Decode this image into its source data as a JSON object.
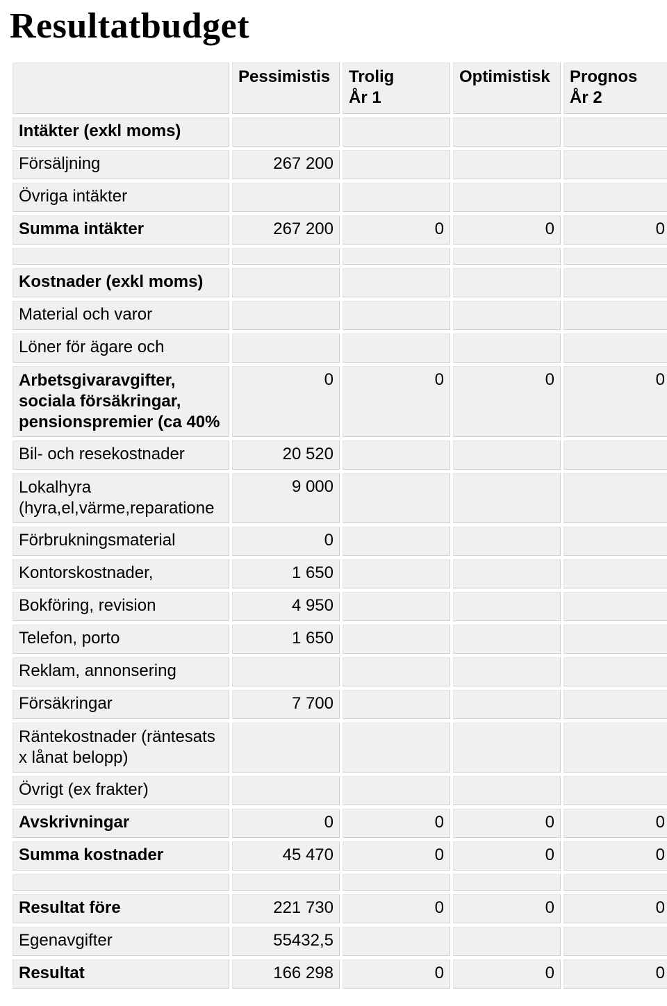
{
  "title": "Resultatbudget",
  "headers": {
    "col1_line1": "Pessimistis",
    "col2_line1": "Trolig",
    "col2_line2": "År 1",
    "col3_line1": "Optimistisk",
    "col4_line1": "Prognos",
    "col4_line2": "År 2"
  },
  "rows": {
    "intakter_exkl_moms": "Intäkter (exkl moms)",
    "forsaljning": {
      "label": "Försäljning",
      "c1": "267 200"
    },
    "ovriga_intakter": "Övriga intäkter",
    "summa_intakter": {
      "label": "Summa intäkter",
      "c1": "267 200",
      "c2": "0",
      "c3": "0",
      "c4": "0"
    },
    "kostnader_exkl_moms": "Kostnader (exkl moms)",
    "material_varor": "Material och varor",
    "loner_agare": "Löner för ägare och",
    "arbetsgivaravg": {
      "label": "Arbetsgivaravgifter, sociala försäkringar, pensionspremier (ca 40%",
      "c1": "0",
      "c2": "0",
      "c3": "0",
      "c4": "0"
    },
    "bil_rese": {
      "label": "Bil- och resekostnader",
      "c1": "20 520"
    },
    "lokalhyra": {
      "label": "Lokalhyra (hyra,el,värme,reparatione",
      "c1": "9 000"
    },
    "forbrukning": {
      "label": "Förbrukningsmaterial",
      "c1": "0"
    },
    "kontor": {
      "label": "Kontorskostnader,",
      "c1": "1 650"
    },
    "bokforing": {
      "label": "Bokföring, revision",
      "c1": "4 950"
    },
    "telefon": {
      "label": "Telefon, porto",
      "c1": "1 650"
    },
    "reklam": "Reklam, annonsering",
    "forsakringar": {
      "label": "Försäkringar",
      "c1": "7 700"
    },
    "rantekostnader": "Räntekostnader (räntesats x lånat belopp)",
    "ovrigt": "Övrigt (ex frakter)",
    "avskrivningar": {
      "label": "Avskrivningar",
      "c1": "0",
      "c2": "0",
      "c3": "0",
      "c4": "0"
    },
    "summa_kostnader": {
      "label": "Summa kostnader",
      "c1": "45 470",
      "c2": "0",
      "c3": "0",
      "c4": "0"
    },
    "resultat_fore": {
      "label": "Resultat före",
      "c1": "221 730",
      "c2": "0",
      "c3": "0",
      "c4": "0"
    },
    "egenavgifter": {
      "label": "Egenavgifter",
      "c1": "55432,5"
    },
    "resultat": {
      "label": "Resultat",
      "c1": "166 298",
      "c2": "0",
      "c3": "0",
      "c4": "0"
    }
  },
  "style": {
    "page_bg": "#ffffff",
    "cell_bg": "#f0f0f0",
    "cell_border": "#cfcfcf",
    "title_fontsize": 52,
    "cell_fontsize": 24
  }
}
